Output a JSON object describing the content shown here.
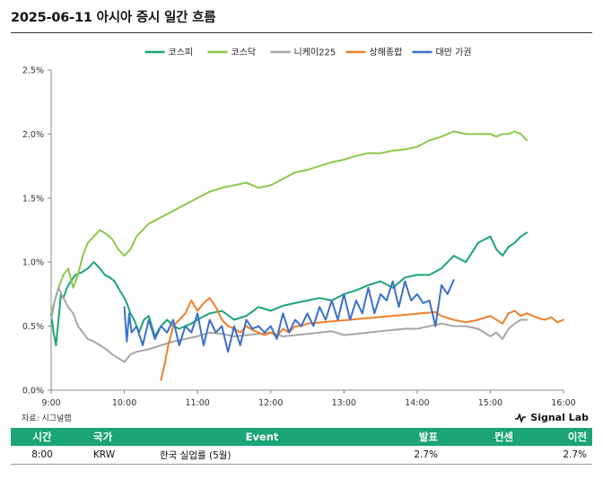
{
  "title": "2025-06-11 아시아 증시 일간 흐름",
  "source": "자료: 시그널랩",
  "brand": "Signal Lab",
  "chart_data": {
    "type": "line",
    "ylim": [
      0,
      2.5
    ],
    "y_ticks": [
      "0.0%",
      "0.5%",
      "1.0%",
      "1.5%",
      "2.0%",
      "2.5%"
    ],
    "xlim": [
      "9:00",
      "16:00"
    ],
    "x_ticks": [
      "9:00",
      "10:00",
      "11:00",
      "12:00",
      "13:00",
      "14:00",
      "15:00",
      "16:00"
    ],
    "grid": false,
    "legend_position": "top",
    "series": [
      {
        "name": "코스피",
        "color": "#1aa478",
        "x": [
          "9:00",
          "9:02",
          "9:04",
          "9:06",
          "9:08",
          "9:10",
          "9:13",
          "9:16",
          "9:20",
          "9:25",
          "9:30",
          "9:35",
          "9:40",
          "9:44",
          "9:48",
          "9:52",
          "9:55",
          "9:58",
          "10:00",
          "10:02",
          "10:05",
          "10:08",
          "10:12",
          "10:16",
          "10:20",
          "10:25",
          "10:30",
          "10:35",
          "10:40",
          "10:45",
          "10:50",
          "10:55",
          "11:00",
          "11:10",
          "11:20",
          "11:30",
          "11:40",
          "11:50",
          "12:00",
          "12:10",
          "12:20",
          "12:30",
          "12:40",
          "12:50",
          "13:00",
          "13:10",
          "13:20",
          "13:30",
          "13:40",
          "13:50",
          "14:00",
          "14:10",
          "14:20",
          "14:30",
          "14:40",
          "14:50",
          "15:00",
          "15:05",
          "15:10",
          "15:15",
          "15:20",
          "15:25",
          "15:30"
        ],
        "values": [
          0.6,
          0.45,
          0.35,
          0.55,
          0.75,
          0.72,
          0.8,
          0.85,
          0.9,
          0.92,
          0.95,
          1.0,
          0.95,
          0.9,
          0.88,
          0.85,
          0.8,
          0.75,
          0.72,
          0.68,
          0.6,
          0.55,
          0.45,
          0.55,
          0.58,
          0.42,
          0.5,
          0.55,
          0.5,
          0.48,
          0.5,
          0.52,
          0.55,
          0.6,
          0.62,
          0.55,
          0.58,
          0.65,
          0.62,
          0.66,
          0.68,
          0.7,
          0.72,
          0.7,
          0.75,
          0.78,
          0.82,
          0.85,
          0.8,
          0.88,
          0.9,
          0.9,
          0.95,
          1.05,
          1.0,
          1.15,
          1.2,
          1.1,
          1.05,
          1.12,
          1.15,
          1.2,
          1.23
        ]
      },
      {
        "name": "코스닥",
        "color": "#8cc84b",
        "x": [
          "9:00",
          "9:03",
          "9:06",
          "9:10",
          "9:14",
          "9:18",
          "9:22",
          "9:26",
          "9:30",
          "9:35",
          "9:40",
          "9:45",
          "9:50",
          "9:55",
          "10:00",
          "10:05",
          "10:10",
          "10:20",
          "10:30",
          "10:40",
          "10:50",
          "11:00",
          "11:10",
          "11:20",
          "11:30",
          "11:40",
          "11:50",
          "12:00",
          "12:10",
          "12:20",
          "12:30",
          "12:40",
          "12:50",
          "13:00",
          "13:10",
          "13:20",
          "13:30",
          "13:40",
          "13:50",
          "14:00",
          "14:10",
          "14:20",
          "14:30",
          "14:40",
          "14:50",
          "15:00",
          "15:05",
          "15:10",
          "15:15",
          "15:20",
          "15:25",
          "15:30"
        ],
        "values": [
          0.6,
          0.7,
          0.8,
          0.9,
          0.95,
          0.8,
          0.9,
          1.05,
          1.15,
          1.2,
          1.25,
          1.22,
          1.18,
          1.1,
          1.05,
          1.1,
          1.2,
          1.3,
          1.35,
          1.4,
          1.45,
          1.5,
          1.55,
          1.58,
          1.6,
          1.62,
          1.58,
          1.6,
          1.65,
          1.7,
          1.72,
          1.75,
          1.78,
          1.8,
          1.83,
          1.85,
          1.85,
          1.87,
          1.88,
          1.9,
          1.95,
          1.98,
          2.02,
          2.0,
          2.0,
          2.0,
          1.98,
          2.0,
          2.0,
          2.02,
          2.0,
          1.95
        ]
      },
      {
        "name": "니케이225",
        "color": "#a6a6a6",
        "x": [
          "9:00",
          "9:03",
          "9:06",
          "9:10",
          "9:14",
          "9:18",
          "9:22",
          "9:26",
          "9:30",
          "9:35",
          "9:40",
          "9:45",
          "9:50",
          "9:55",
          "10:00",
          "10:05",
          "10:10",
          "10:20",
          "10:30",
          "10:40",
          "10:50",
          "11:00",
          "11:10",
          "11:20",
          "11:30",
          "11:40",
          "11:50",
          "12:00",
          "12:10",
          "12:20",
          "12:30",
          "12:40",
          "12:50",
          "13:00",
          "13:10",
          "13:20",
          "13:30",
          "13:40",
          "13:50",
          "14:00",
          "14:10",
          "14:20",
          "14:30",
          "14:40",
          "14:50",
          "15:00",
          "15:05",
          "15:10",
          "15:15",
          "15:20",
          "15:25",
          "15:30"
        ],
        "values": [
          0.55,
          0.7,
          0.8,
          0.72,
          0.65,
          0.6,
          0.5,
          0.45,
          0.4,
          0.38,
          0.35,
          0.32,
          0.28,
          0.25,
          0.22,
          0.28,
          0.3,
          0.32,
          0.35,
          0.38,
          0.4,
          0.42,
          0.45,
          0.44,
          0.42,
          0.43,
          0.44,
          0.45,
          0.42,
          0.43,
          0.44,
          0.45,
          0.46,
          0.43,
          0.44,
          0.45,
          0.46,
          0.47,
          0.48,
          0.48,
          0.5,
          0.52,
          0.5,
          0.5,
          0.48,
          0.42,
          0.45,
          0.4,
          0.48,
          0.52,
          0.55,
          0.55
        ]
      },
      {
        "name": "상해종합",
        "color": "#f07f2a",
        "x": [
          "10:30",
          "10:33",
          "10:36",
          "10:40",
          "10:45",
          "10:50",
          "10:55",
          "11:00",
          "11:05",
          "11:10",
          "11:15",
          "11:20",
          "11:25",
          "11:30",
          "11:35",
          "11:40",
          "11:45",
          "11:50",
          "11:55",
          "12:00",
          "12:05",
          "12:10",
          "12:15",
          "12:20",
          "12:25",
          "12:30",
          "14:15",
          "14:20",
          "14:30",
          "14:40",
          "14:50",
          "15:00",
          "15:05",
          "15:10",
          "15:15",
          "15:20",
          "15:25",
          "15:30",
          "15:35",
          "15:40",
          "15:45",
          "15:50",
          "15:55",
          "16:00"
        ],
        "values": [
          0.08,
          0.2,
          0.35,
          0.5,
          0.55,
          0.6,
          0.7,
          0.62,
          0.68,
          0.72,
          0.65,
          0.55,
          0.5,
          0.48,
          0.45,
          0.5,
          0.47,
          0.45,
          0.43,
          0.45,
          0.42,
          0.48,
          0.45,
          0.5,
          0.5,
          0.52,
          0.61,
          0.58,
          0.55,
          0.53,
          0.55,
          0.58,
          0.55,
          0.52,
          0.6,
          0.62,
          0.58,
          0.6,
          0.58,
          0.56,
          0.55,
          0.57,
          0.53,
          0.55
        ]
      },
      {
        "name": "대만 가권",
        "color": "#3b6fc9",
        "x": [
          "10:00",
          "10:02",
          "10:04",
          "10:06",
          "10:10",
          "10:15",
          "10:20",
          "10:25",
          "10:30",
          "10:35",
          "10:40",
          "10:45",
          "10:50",
          "10:55",
          "11:00",
          "11:05",
          "11:10",
          "11:15",
          "11:20",
          "11:25",
          "11:30",
          "11:35",
          "11:40",
          "11:45",
          "11:50",
          "11:55",
          "12:00",
          "12:05",
          "12:10",
          "12:15",
          "12:20",
          "12:25",
          "12:30",
          "12:35",
          "12:40",
          "12:45",
          "12:50",
          "12:55",
          "13:00",
          "13:05",
          "13:10",
          "13:15",
          "13:20",
          "13:25",
          "13:30",
          "13:35",
          "13:40",
          "13:45",
          "13:50",
          "13:55",
          "14:00",
          "14:05",
          "14:10",
          "14:15",
          "14:20",
          "14:25",
          "14:30"
        ],
        "values": [
          0.65,
          0.38,
          0.6,
          0.45,
          0.5,
          0.35,
          0.55,
          0.4,
          0.5,
          0.45,
          0.55,
          0.35,
          0.5,
          0.45,
          0.6,
          0.35,
          0.55,
          0.45,
          0.5,
          0.3,
          0.5,
          0.35,
          0.55,
          0.48,
          0.5,
          0.45,
          0.5,
          0.4,
          0.6,
          0.45,
          0.55,
          0.5,
          0.6,
          0.5,
          0.65,
          0.55,
          0.7,
          0.55,
          0.75,
          0.55,
          0.7,
          0.6,
          0.8,
          0.6,
          0.75,
          0.7,
          0.85,
          0.65,
          0.85,
          0.7,
          0.75,
          0.68,
          0.7,
          0.5,
          0.82,
          0.75,
          0.86
        ]
      }
    ]
  },
  "table": {
    "headers": {
      "time": "시간",
      "country": "국가",
      "event": "Event",
      "actual": "발표",
      "consensus": "컨센",
      "previous": "이전"
    },
    "rows": [
      {
        "time": "8:00",
        "country": "KRW",
        "event": "한국 실업률 (5월)",
        "actual": "2.7%",
        "consensus": "",
        "previous": "2.7%"
      }
    ]
  }
}
